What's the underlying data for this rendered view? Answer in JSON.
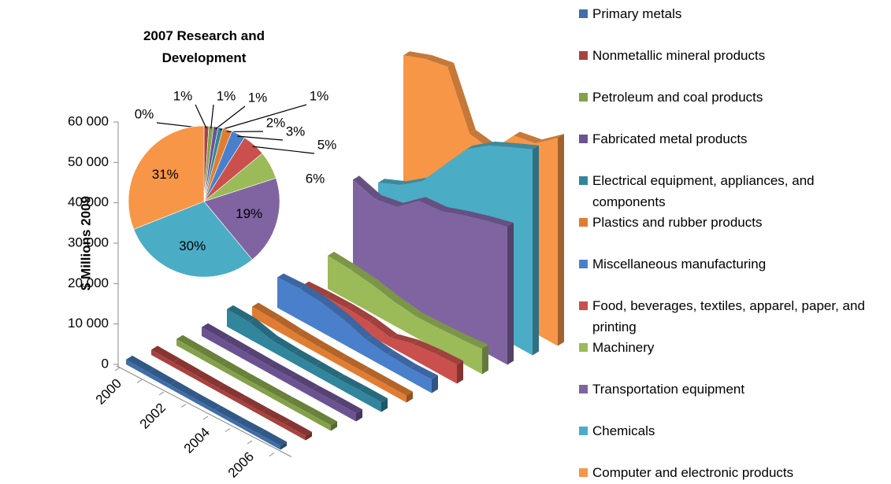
{
  "chart_data": [
    {
      "type": "area",
      "ylabel": "$ Millions 2009",
      "categories": [
        "2000",
        null,
        "2002",
        null,
        "2004",
        null,
        "2006",
        null
      ],
      "ylim": [
        0,
        60000
      ],
      "yticks": [
        {
          "value": 0,
          "label": "0"
        },
        {
          "value": 10000,
          "label": "10 000"
        },
        {
          "value": 20000,
          "label": "20 000"
        },
        {
          "value": 30000,
          "label": "30 000"
        },
        {
          "value": 40000,
          "label": "40 000"
        },
        {
          "value": 50000,
          "label": "50 000"
        },
        {
          "value": 60000,
          "label": "60 000"
        }
      ],
      "series": [
        {
          "name": "Primary metals",
          "color": "#3f6ea8",
          "values": [
            1200,
            1100,
            1000,
            900,
            900,
            900,
            1000,
            1000
          ]
        },
        {
          "name": "Nonmetallic mineral products",
          "color": "#a8423f",
          "values": [
            1300,
            1200,
            1100,
            1000,
            1000,
            1000,
            1100,
            1100
          ]
        },
        {
          "name": "Petroleum and coal products",
          "color": "#83a14a",
          "values": [
            1600,
            1500,
            1400,
            1300,
            1300,
            1300,
            1400,
            1400
          ]
        },
        {
          "name": "Fabricated metal products",
          "color": "#6b5391",
          "values": [
            2200,
            2100,
            2000,
            1900,
            1900,
            1900,
            2000,
            2000
          ]
        },
        {
          "name": "Electrical equipment, appliances, and components",
          "color": "#31859c",
          "values": [
            4300,
            4200,
            2800,
            2500,
            2400,
            2300,
            2400,
            2400
          ]
        },
        {
          "name": "Plastics and rubber products",
          "color": "#e07d32",
          "values": [
            2600,
            2400,
            2000,
            1800,
            1700,
            1700,
            1700,
            1700
          ]
        },
        {
          "name": "Miscellaneous manufacturing",
          "color": "#4a7fcb",
          "values": [
            7500,
            7800,
            7400,
            6200,
            4200,
            3500,
            3200,
            3400
          ]
        },
        {
          "name": "Food, beverages, textiles, apparel, paper, and printing",
          "color": "#c9504c",
          "values": [
            3200,
            3500,
            3600,
            3300,
            2300,
            3800,
            4400,
            4700
          ]
        },
        {
          "name": "Machinery",
          "color": "#9bbb59",
          "values": [
            8200,
            7900,
            7200,
            6000,
            5200,
            5400,
            5800,
            6300
          ]
        },
        {
          "name": "Transportation equipment",
          "color": "#8064a2",
          "values": [
            24700,
            22900,
            24000,
            28500,
            29000,
            31000,
            32700,
            34200
          ]
        },
        {
          "name": "Chemicals",
          "color": "#4bacc6",
          "values": [
            21600,
            24000,
            28000,
            35000,
            41900,
            45900,
            48500,
            51000
          ]
        },
        {
          "name": "Computer and electronic products",
          "color": "#f79646",
          "values": [
            50800,
            52900,
            54000,
            40400,
            39500,
            46000,
            47100,
            51500
          ]
        }
      ]
    },
    {
      "type": "pie",
      "title": "2007 Research and Development",
      "values": [
        0,
        1,
        1,
        1,
        1,
        2,
        3,
        5,
        6,
        19,
        30,
        31
      ],
      "value_labels": [
        "0%",
        "1%",
        "1%",
        "1%",
        "1%",
        "2%",
        "3%",
        "5%",
        "6%",
        "19%",
        "30%",
        "31%"
      ]
    }
  ]
}
